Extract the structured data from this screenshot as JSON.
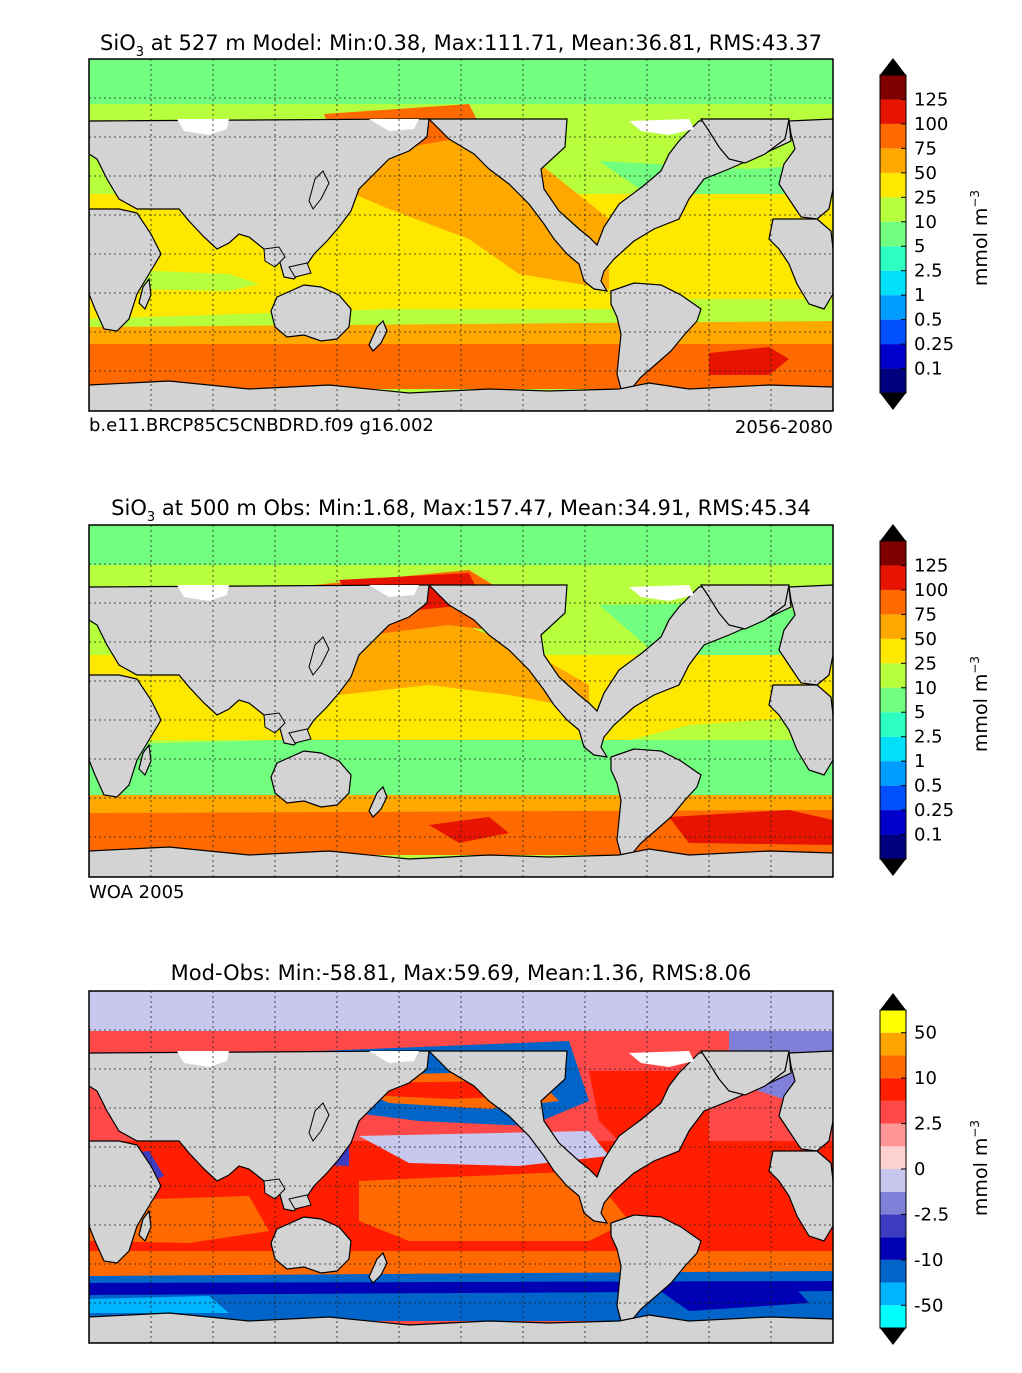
{
  "panels": [
    {
      "title_prefix": "SiO",
      "title_sub": "3",
      "title_rest": " at 527 m Model: Min:0.38, Max:111.71, Mean:36.81, RMS:43.37",
      "note_left": "b.e11.BRCP85C5CNBDRD.f09 g16.002",
      "note_right": "2056-2080",
      "colorbar": {
        "ticks": [
          "0.1",
          "0.25",
          "0.5",
          "1",
          "2.5",
          "5",
          "10",
          "25",
          "50",
          "75",
          "100",
          "125"
        ],
        "colors": [
          "#00007f",
          "#0000cd",
          "#0050ff",
          "#009cff",
          "#00e0f8",
          "#2dffc3",
          "#72ff7f",
          "#b7ff3c",
          "#ffe800",
          "#ffa800",
          "#ff6a00",
          "#e61400",
          "#7f0000"
        ],
        "unit_text": "mmol m",
        "unit_sup": "−3"
      }
    },
    {
      "title_prefix": "SiO",
      "title_sub": "3",
      "title_rest": " at 500 m Obs: Min:1.68, Max:157.47, Mean:34.91, RMS:45.34",
      "note_left": "WOA 2005",
      "note_right": "",
      "colorbar": {
        "ticks": [
          "0.1",
          "0.25",
          "0.5",
          "1",
          "2.5",
          "5",
          "10",
          "25",
          "50",
          "75",
          "100",
          "125"
        ],
        "colors": [
          "#00007f",
          "#0000cd",
          "#0050ff",
          "#009cff",
          "#00e0f8",
          "#2dffc3",
          "#72ff7f",
          "#b7ff3c",
          "#ffe800",
          "#ffa800",
          "#ff6a00",
          "#e61400",
          "#7f0000"
        ],
        "unit_text": "mmol m",
        "unit_sup": "−3"
      }
    },
    {
      "title_prefix": "",
      "title_sub": "",
      "title_rest": "Mod-Obs: Min:-58.81, Max:59.69, Mean:1.36, RMS:8.06",
      "note_left": "",
      "note_right": "",
      "colorbar": {
        "ticks": [
          "-50",
          "-10",
          "-2.5",
          "0",
          "2.5",
          "10",
          "50"
        ],
        "tick_positions": [
          1,
          3,
          5,
          7,
          9,
          11,
          13
        ],
        "colors": [
          "#00ffff",
          "#00b4ff",
          "#0064c8",
          "#0000b4",
          "#3c3cc0",
          "#8080d8",
          "#c8c8ee",
          "#ffd2d2",
          "#ff9696",
          "#ff4848",
          "#ff1e00",
          "#ff6a00",
          "#ffa500",
          "#ffff00"
        ],
        "unit_text": "mmol m",
        "unit_sup": "−3"
      }
    }
  ],
  "map_style": {
    "land": "#d3d3d3",
    "coast": "#000000",
    "grid_lines": "dashed",
    "missing_data": "#ffffff"
  }
}
